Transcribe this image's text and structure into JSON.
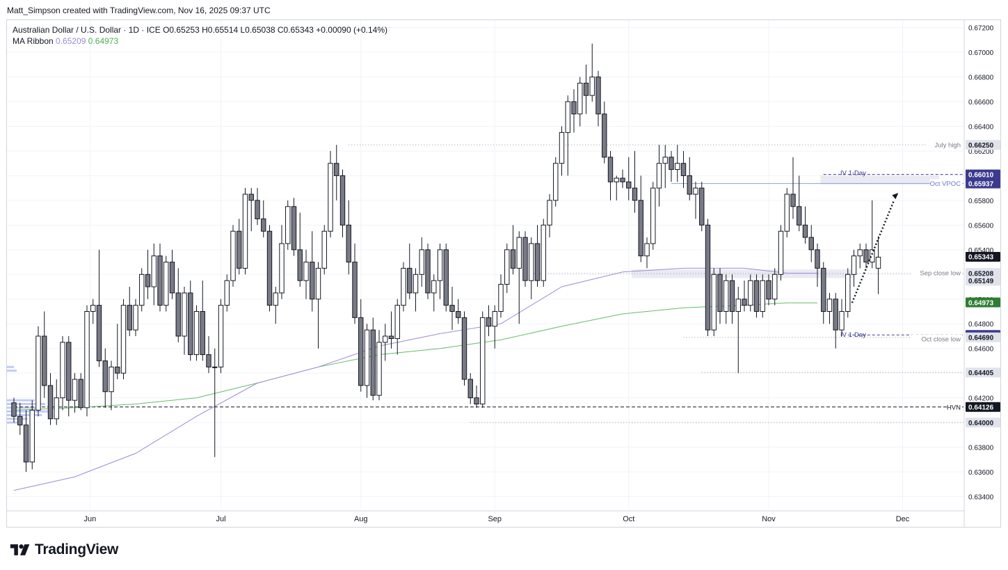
{
  "header": {
    "credit": "Matt_Simpson created with TradingView.com, Nov 16, 2025 09:37 UTC"
  },
  "legend": {
    "symbol": "Australian Dollar / U.S. Dollar · 1D · ICE",
    "ohlc": "O0.65253 H0.65514 L0.65038 C0.65343 +0.00090 (+0.14%)",
    "ma_label": "MA Ribbon",
    "ma1": "0.65209",
    "ma2": "0.64973"
  },
  "brand": {
    "name": "TradingView"
  },
  "chart_data": {
    "type": "candlestick",
    "x_ticks": [
      {
        "label": "Jun",
        "index": 12.5
      },
      {
        "label": "Jul",
        "index": 34
      },
      {
        "label": "Aug",
        "index": 57
      },
      {
        "label": "Sep",
        "index": 79
      },
      {
        "label": "Oct",
        "index": 101
      },
      {
        "label": "Nov",
        "index": 124
      },
      {
        "label": "Dec",
        "index": 146
      }
    ],
    "y_range": [
      0.6329,
      0.6726
    ],
    "y_ticks": [
      "0.67200",
      "0.67000",
      "0.66800",
      "0.66600",
      "0.66400",
      "0.66200",
      "0.66000",
      "0.65800",
      "0.65600",
      "0.65400",
      "0.65200",
      "0.65000",
      "0.64800",
      "0.64600",
      "0.64400",
      "0.64200",
      "0.64000",
      "0.63800",
      "0.63600",
      "0.63400"
    ],
    "ohlc": [
      [
        0.6416,
        0.642,
        0.64,
        0.6405
      ],
      [
        0.6405,
        0.6416,
        0.639,
        0.6398
      ],
      [
        0.6398,
        0.641,
        0.636,
        0.6368
      ],
      [
        0.6368,
        0.6418,
        0.6362,
        0.641
      ],
      [
        0.641,
        0.6478,
        0.6405,
        0.647
      ],
      [
        0.647,
        0.649,
        0.642,
        0.643
      ],
      [
        0.643,
        0.644,
        0.6398,
        0.6403
      ],
      [
        0.6403,
        0.6435,
        0.6398,
        0.642
      ],
      [
        0.642,
        0.647,
        0.641,
        0.6465
      ],
      [
        0.6465,
        0.647,
        0.6405,
        0.6418
      ],
      [
        0.6418,
        0.644,
        0.6408,
        0.6435
      ],
      [
        0.6435,
        0.644,
        0.641,
        0.6412
      ],
      [
        0.6412,
        0.6495,
        0.6405,
        0.649
      ],
      [
        0.649,
        0.65,
        0.648,
        0.6495
      ],
      [
        0.6495,
        0.654,
        0.6445,
        0.645
      ],
      [
        0.645,
        0.646,
        0.6412,
        0.6425
      ],
      [
        0.6425,
        0.645,
        0.641,
        0.6445
      ],
      [
        0.6445,
        0.648,
        0.6435,
        0.644
      ],
      [
        0.644,
        0.65,
        0.6435,
        0.6495
      ],
      [
        0.6495,
        0.651,
        0.647,
        0.6475
      ],
      [
        0.6475,
        0.65,
        0.647,
        0.6495
      ],
      [
        0.6495,
        0.6525,
        0.649,
        0.652
      ],
      [
        0.652,
        0.654,
        0.65,
        0.651
      ],
      [
        0.651,
        0.6545,
        0.6495,
        0.6535
      ],
      [
        0.6535,
        0.6545,
        0.649,
        0.6495
      ],
      [
        0.6495,
        0.6535,
        0.649,
        0.653
      ],
      [
        0.653,
        0.654,
        0.65,
        0.6505
      ],
      [
        0.6505,
        0.6525,
        0.6465,
        0.647
      ],
      [
        0.647,
        0.651,
        0.6455,
        0.6505
      ],
      [
        0.6505,
        0.6515,
        0.645,
        0.6455
      ],
      [
        0.6455,
        0.6495,
        0.645,
        0.649
      ],
      [
        0.649,
        0.6515,
        0.645,
        0.6455
      ],
      [
        0.6455,
        0.647,
        0.644,
        0.6445
      ],
      [
        0.6445,
        0.646,
        0.6372,
        0.6445
      ],
      [
        0.6445,
        0.65,
        0.644,
        0.6495
      ],
      [
        0.6495,
        0.652,
        0.649,
        0.6515
      ],
      [
        0.6515,
        0.656,
        0.651,
        0.6555
      ],
      [
        0.6555,
        0.6565,
        0.652,
        0.6525
      ],
      [
        0.6525,
        0.659,
        0.652,
        0.6585
      ],
      [
        0.6585,
        0.659,
        0.6555,
        0.658
      ],
      [
        0.658,
        0.659,
        0.656,
        0.6565
      ],
      [
        0.6565,
        0.658,
        0.655,
        0.6555
      ],
      [
        0.6555,
        0.656,
        0.649,
        0.6495
      ],
      [
        0.6495,
        0.651,
        0.648,
        0.6505
      ],
      [
        0.6505,
        0.656,
        0.65,
        0.6545
      ],
      [
        0.6545,
        0.658,
        0.654,
        0.6575
      ],
      [
        0.6575,
        0.6582,
        0.6535,
        0.654
      ],
      [
        0.654,
        0.657,
        0.651,
        0.6515
      ],
      [
        0.6515,
        0.654,
        0.65,
        0.653
      ],
      [
        0.653,
        0.6555,
        0.649,
        0.65
      ],
      [
        0.65,
        0.653,
        0.646,
        0.6525
      ],
      [
        0.6525,
        0.656,
        0.652,
        0.6555
      ],
      [
        0.6555,
        0.662,
        0.655,
        0.661
      ],
      [
        0.661,
        0.6625,
        0.658,
        0.66
      ],
      [
        0.66,
        0.6605,
        0.655,
        0.656
      ],
      [
        0.656,
        0.658,
        0.652,
        0.653
      ],
      [
        0.653,
        0.6545,
        0.648,
        0.6485
      ],
      [
        0.6485,
        0.65,
        0.6425,
        0.643
      ],
      [
        0.643,
        0.648,
        0.642,
        0.6475
      ],
      [
        0.6475,
        0.6485,
        0.6418,
        0.6422
      ],
      [
        0.6422,
        0.6475,
        0.6418,
        0.6465
      ],
      [
        0.6465,
        0.648,
        0.645,
        0.647
      ],
      [
        0.647,
        0.649,
        0.646,
        0.6468
      ],
      [
        0.6468,
        0.65,
        0.6455,
        0.6495
      ],
      [
        0.6495,
        0.653,
        0.649,
        0.6525
      ],
      [
        0.6525,
        0.6545,
        0.65,
        0.6505
      ],
      [
        0.6505,
        0.6525,
        0.649,
        0.652
      ],
      [
        0.652,
        0.655,
        0.651,
        0.654
      ],
      [
        0.654,
        0.6545,
        0.65,
        0.6505
      ],
      [
        0.6505,
        0.652,
        0.649,
        0.6515
      ],
      [
        0.6515,
        0.6545,
        0.65,
        0.654
      ],
      [
        0.654,
        0.6545,
        0.649,
        0.6495
      ],
      [
        0.6495,
        0.651,
        0.6475,
        0.649
      ],
      [
        0.649,
        0.65,
        0.648,
        0.6485
      ],
      [
        0.6485,
        0.649,
        0.643,
        0.6435
      ],
      [
        0.6435,
        0.644,
        0.6415,
        0.642
      ],
      [
        0.642,
        0.643,
        0.6412,
        0.6415
      ],
      [
        0.6415,
        0.649,
        0.6412,
        0.6485
      ],
      [
        0.6485,
        0.6495,
        0.647,
        0.6478
      ],
      [
        0.6478,
        0.6495,
        0.646,
        0.649
      ],
      [
        0.649,
        0.652,
        0.6485,
        0.6512
      ],
      [
        0.6512,
        0.6545,
        0.6505,
        0.654
      ],
      [
        0.654,
        0.656,
        0.652,
        0.6525
      ],
      [
        0.6525,
        0.6555,
        0.648,
        0.655
      ],
      [
        0.655,
        0.6555,
        0.651,
        0.6515
      ],
      [
        0.6515,
        0.655,
        0.65,
        0.6545
      ],
      [
        0.6545,
        0.656,
        0.651,
        0.6515
      ],
      [
        0.6515,
        0.6565,
        0.651,
        0.656
      ],
      [
        0.656,
        0.6585,
        0.655,
        0.658
      ],
      [
        0.658,
        0.6615,
        0.6575,
        0.661
      ],
      [
        0.661,
        0.664,
        0.66,
        0.6635
      ],
      [
        0.6635,
        0.6665,
        0.66,
        0.666
      ],
      [
        0.666,
        0.667,
        0.6635,
        0.665
      ],
      [
        0.665,
        0.668,
        0.664,
        0.6675
      ],
      [
        0.6675,
        0.669,
        0.665,
        0.6665
      ],
      [
        0.6665,
        0.6707,
        0.666,
        0.668
      ],
      [
        0.668,
        0.6685,
        0.664,
        0.665
      ],
      [
        0.665,
        0.666,
        0.661,
        0.6615
      ],
      [
        0.6615,
        0.662,
        0.658,
        0.6595
      ],
      [
        0.6595,
        0.66,
        0.658,
        0.6598
      ],
      [
        0.6598,
        0.6605,
        0.659,
        0.6595
      ],
      [
        0.6595,
        0.6615,
        0.658,
        0.659
      ],
      [
        0.659,
        0.662,
        0.657,
        0.658
      ],
      [
        0.658,
        0.66,
        0.653,
        0.6535
      ],
      [
        0.6535,
        0.655,
        0.6525,
        0.6545
      ],
      [
        0.6545,
        0.6595,
        0.654,
        0.659
      ],
      [
        0.659,
        0.6625,
        0.6575,
        0.661
      ],
      [
        0.661,
        0.6625,
        0.659,
        0.6615
      ],
      [
        0.6615,
        0.662,
        0.6595,
        0.6605
      ],
      [
        0.6605,
        0.6625,
        0.6595,
        0.661
      ],
      [
        0.661,
        0.662,
        0.659,
        0.66
      ],
      [
        0.66,
        0.6615,
        0.658,
        0.6585
      ],
      [
        0.6585,
        0.6595,
        0.6565,
        0.659
      ],
      [
        0.659,
        0.6595,
        0.6555,
        0.656
      ],
      [
        0.656,
        0.6565,
        0.647,
        0.6475
      ],
      [
        0.6475,
        0.6525,
        0.647,
        0.652
      ],
      [
        0.652,
        0.6525,
        0.648,
        0.649
      ],
      [
        0.649,
        0.652,
        0.648,
        0.6515
      ],
      [
        0.6515,
        0.652,
        0.648,
        0.649
      ],
      [
        0.649,
        0.651,
        0.644,
        0.65
      ],
      [
        0.65,
        0.6515,
        0.649,
        0.6495
      ],
      [
        0.6495,
        0.652,
        0.649,
        0.6515
      ],
      [
        0.6515,
        0.652,
        0.6485,
        0.649
      ],
      [
        0.649,
        0.652,
        0.6485,
        0.6515
      ],
      [
        0.6515,
        0.652,
        0.6495,
        0.65
      ],
      [
        0.65,
        0.6525,
        0.6495,
        0.652
      ],
      [
        0.652,
        0.656,
        0.6515,
        0.6555
      ],
      [
        0.6555,
        0.659,
        0.655,
        0.6585
      ],
      [
        0.6585,
        0.6615,
        0.6565,
        0.6575
      ],
      [
        0.6575,
        0.66,
        0.6555,
        0.656
      ],
      [
        0.656,
        0.6575,
        0.6545,
        0.655
      ],
      [
        0.655,
        0.656,
        0.653,
        0.654
      ],
      [
        0.654,
        0.6545,
        0.651,
        0.6525
      ],
      [
        0.6525,
        0.653,
        0.648,
        0.649
      ],
      [
        0.649,
        0.6505,
        0.648,
        0.65
      ],
      [
        0.65,
        0.6505,
        0.646,
        0.6475
      ],
      [
        0.6475,
        0.65,
        0.647,
        0.649
      ],
      [
        0.649,
        0.6525,
        0.6485,
        0.652
      ],
      [
        0.652,
        0.654,
        0.651,
        0.6535
      ],
      [
        0.6535,
        0.6545,
        0.6525,
        0.654
      ],
      [
        0.654,
        0.6545,
        0.6525,
        0.653
      ],
      [
        0.653,
        0.658,
        0.6525,
        0.654
      ],
      [
        0.6525,
        0.6551,
        0.6504,
        0.6534
      ]
    ],
    "ma_ribbon": {
      "ma1": {
        "color": "#9c8ad6",
        "points": [
          [
            0,
            0.6345
          ],
          [
            10,
            0.6356
          ],
          [
            20,
            0.6375
          ],
          [
            30,
            0.6405
          ],
          [
            40,
            0.6432
          ],
          [
            50,
            0.6445
          ],
          [
            60,
            0.6462
          ],
          [
            70,
            0.6472
          ],
          [
            80,
            0.648
          ],
          [
            90,
            0.651
          ],
          [
            100,
            0.6522
          ],
          [
            110,
            0.6525
          ],
          [
            120,
            0.6525
          ],
          [
            127,
            0.6521
          ],
          [
            132,
            0.6521
          ]
        ]
      },
      "ma2": {
        "color": "#66bb6a",
        "points": [
          [
            0,
            0.641
          ],
          [
            10,
            0.6412
          ],
          [
            20,
            0.6415
          ],
          [
            30,
            0.642
          ],
          [
            40,
            0.6432
          ],
          [
            50,
            0.6445
          ],
          [
            60,
            0.6455
          ],
          [
            70,
            0.646
          ],
          [
            80,
            0.6467
          ],
          [
            90,
            0.6478
          ],
          [
            100,
            0.6488
          ],
          [
            110,
            0.6493
          ],
          [
            120,
            0.6495
          ],
          [
            127,
            0.6497
          ],
          [
            132,
            0.6497
          ]
        ]
      }
    },
    "price_labels": [
      {
        "value": 0.6625,
        "text": "0.66250",
        "bg": "#e0e3eb",
        "fg": "#131722"
      },
      {
        "value": 0.6601,
        "text": "0.66010",
        "bg": "#3c3a8e",
        "fg": "#ffffff"
      },
      {
        "value": 0.65937,
        "text": "0.65937",
        "bg": "#3c3a8e",
        "fg": "#ffffff"
      },
      {
        "value": 0.65343,
        "text": "0.65343",
        "bg": "#131722",
        "fg": "#ffffff"
      },
      {
        "value": 0.65209,
        "text": "0.65209",
        "bg": "#9c8ad6",
        "fg": "#ffffff"
      },
      {
        "value": 0.65208,
        "text": "0.65208",
        "bg": "#e0e3eb",
        "fg": "#131722"
      },
      {
        "value": 0.65149,
        "text": "0.65149",
        "bg": "#e0e3eb",
        "fg": "#131722"
      },
      {
        "value": 0.64973,
        "text": "0.64973",
        "bg": "#2e7d32",
        "fg": "#ffffff"
      },
      {
        "value": 0.6471,
        "text": "0.64710",
        "bg": "#3c3a8e",
        "fg": "#ffffff"
      },
      {
        "value": 0.6469,
        "text": "0.64690",
        "bg": "#e0e3eb",
        "fg": "#131722"
      },
      {
        "value": 0.64405,
        "text": "0.64405",
        "bg": "#e0e3eb",
        "fg": "#131722"
      },
      {
        "value": 0.64126,
        "text": "0.64126",
        "bg": "#131722",
        "fg": "#ffffff"
      },
      {
        "value": 0.64,
        "text": "0.64000",
        "bg": "#e0e3eb",
        "fg": "#131722"
      }
    ],
    "annotations": [
      {
        "text": "July high",
        "value": 0.6625
      },
      {
        "text": "IV 1-Day",
        "value": 0.6601
      },
      {
        "text": "Oct VPOC",
        "value": 0.65937
      },
      {
        "text": "Sep close low",
        "value": 0.65208
      },
      {
        "text": "IV 1-Day",
        "value": 0.6471
      },
      {
        "text": "Oct close low",
        "value": 0.6469
      },
      {
        "text": "HVN",
        "value": 0.64126
      }
    ],
    "colors": {
      "up": "#ffffff",
      "down": "#787b86",
      "outline": "#131722",
      "grid": "#f0f3fa"
    }
  }
}
